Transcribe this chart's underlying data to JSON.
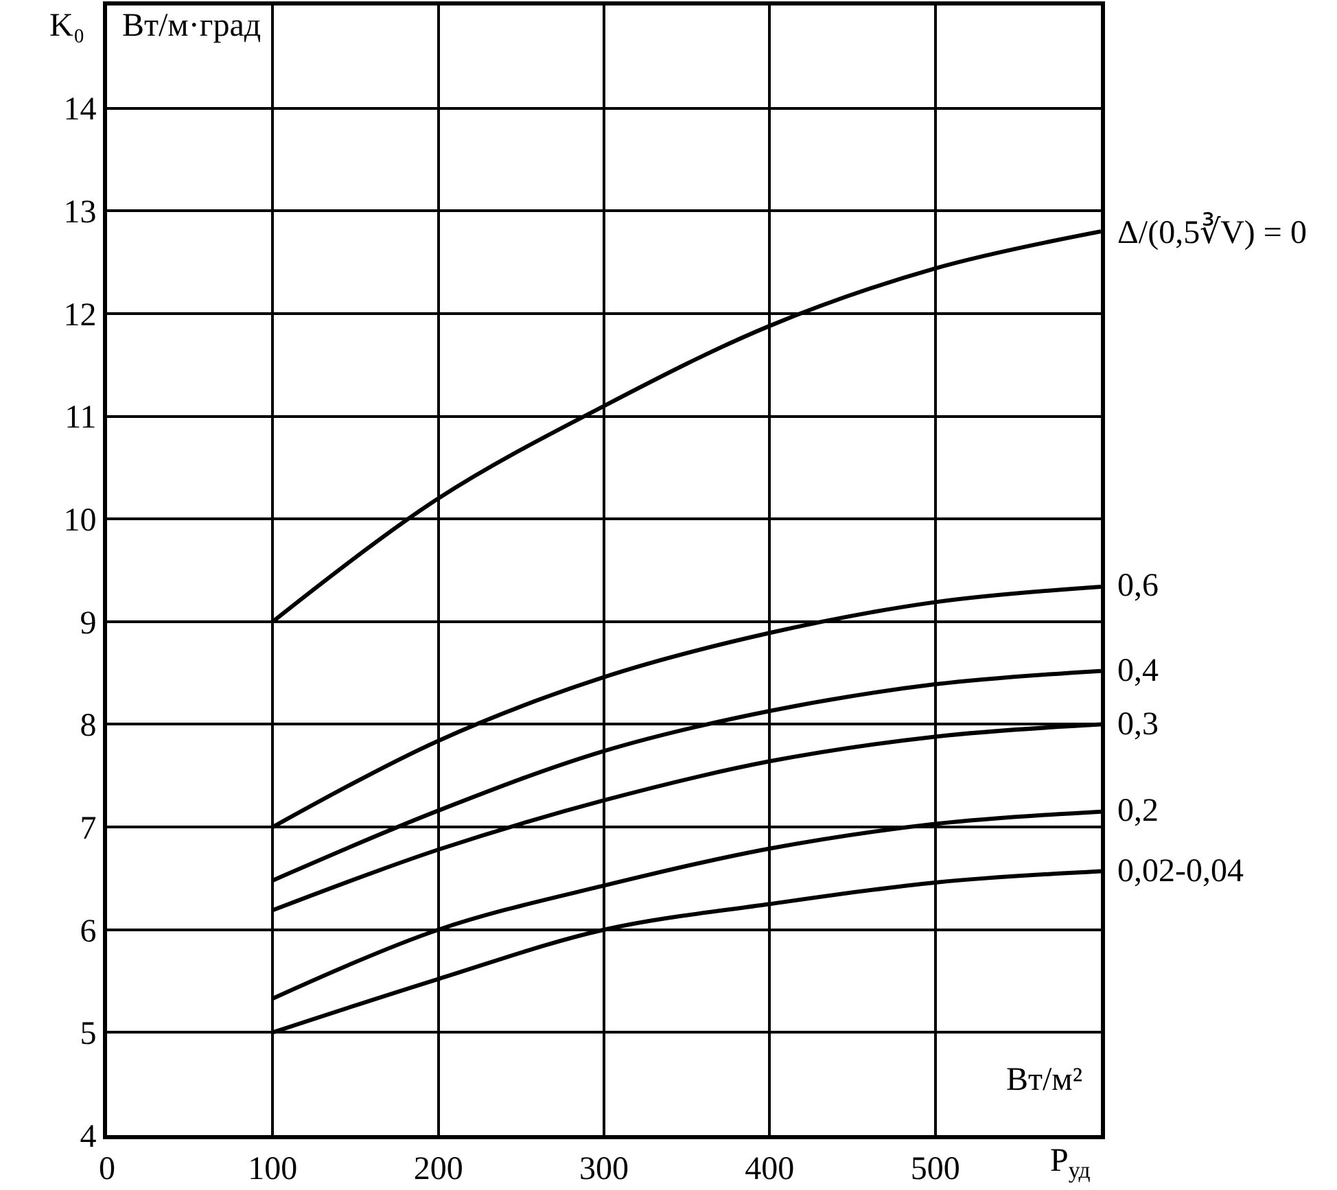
{
  "chart_data": {
    "type": "line",
    "xlabel": "P$_{уд}$",
    "ylabel": "K₀",
    "annotations": [
      "Вт/м·град",
      "Вт/м²"
    ],
    "x": [
      100,
      200,
      300,
      400,
      500,
      600
    ],
    "series": [
      {
        "name": "Δ/(0,5∛V) = 0",
        "color": "#000000",
        "values": [
          9.0,
          10.2,
          11.1,
          11.88,
          12.44,
          12.8
        ]
      },
      {
        "name": "0,6",
        "color": "#000000",
        "values": [
          7.0,
          7.84,
          8.46,
          8.89,
          9.19,
          9.34
        ]
      },
      {
        "name": "0,4",
        "color": "#000000",
        "values": [
          6.48,
          7.16,
          7.74,
          8.13,
          8.39,
          8.52
        ]
      },
      {
        "name": "0,3",
        "color": "#000000",
        "values": [
          6.19,
          6.78,
          7.26,
          7.64,
          7.88,
          8.0
        ]
      },
      {
        "name": "0,2",
        "color": "#000000",
        "values": [
          5.33,
          6.0,
          6.43,
          6.79,
          7.03,
          7.15
        ]
      },
      {
        "name": "0,02-0,04",
        "color": "#000000",
        "values": [
          5.0,
          5.52,
          6.0,
          6.25,
          6.46,
          6.57
        ]
      }
    ],
    "xlim": [
      0,
      600
    ],
    "xticks": [
      0,
      100,
      200,
      300,
      400,
      500
    ],
    "ylim": [
      4,
      15
    ],
    "yticks": [
      4,
      5,
      6,
      7,
      8,
      9,
      10,
      11,
      12,
      13,
      14
    ],
    "grid": true,
    "legend": false,
    "marker": "none",
    "line_style": "solid"
  }
}
